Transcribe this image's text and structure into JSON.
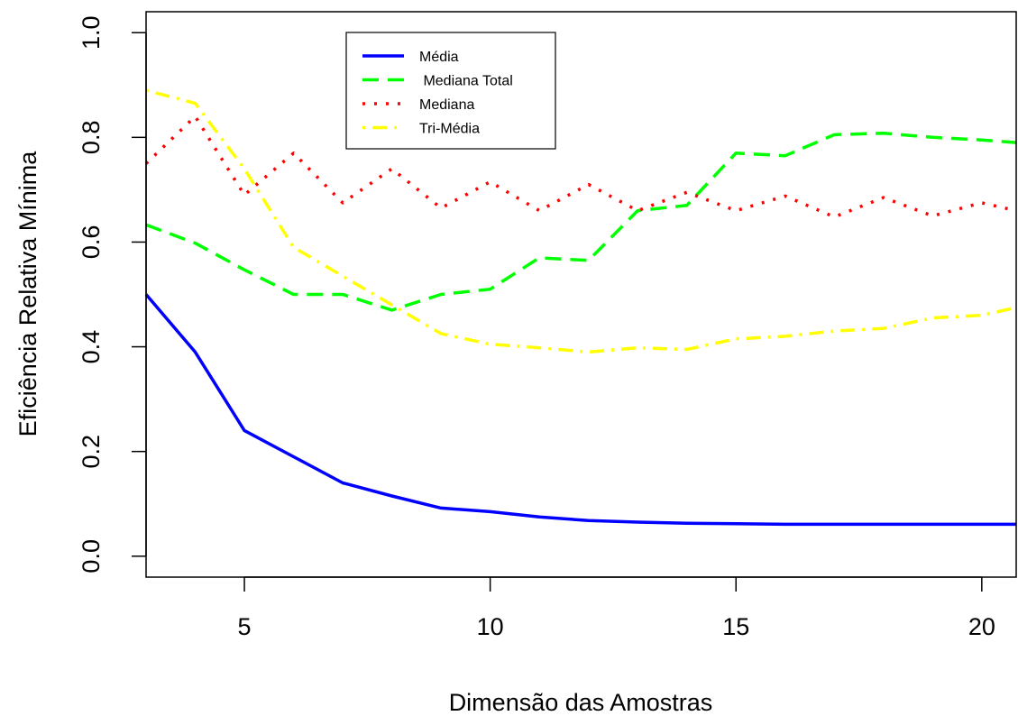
{
  "chart_data": {
    "type": "line",
    "xlabel": "Dimensão das Amostras",
    "ylabel": "Eficiência Relativa Mínima",
    "xlim": [
      3,
      20.7
    ],
    "ylim": [
      -0.04,
      1.04
    ],
    "xticks": [
      5,
      10,
      15,
      20
    ],
    "yticks": [
      0.0,
      0.2,
      0.4,
      0.6,
      0.8,
      1.0
    ],
    "ytick_labels": [
      "0.0",
      "0.2",
      "0.4",
      "0.6",
      "0.8",
      "1.0"
    ],
    "legend_position": "top-center",
    "x": [
      3,
      4,
      5,
      6,
      7,
      8,
      9,
      10,
      11,
      12,
      13,
      14,
      15,
      16,
      17,
      18,
      19,
      20,
      20.7
    ],
    "series": [
      {
        "name": "Média",
        "color": "#0000ff",
        "dash": "solid",
        "values": [
          0.5,
          0.39,
          0.24,
          0.19,
          0.14,
          0.115,
          0.092,
          0.085,
          0.075,
          0.068,
          0.065,
          0.063,
          0.062,
          0.061,
          0.061,
          0.061,
          0.061,
          0.061,
          0.061
        ]
      },
      {
        "name": " Mediana Total",
        "color": "#00ff00",
        "dash": "dashed",
        "values": [
          0.633,
          0.598,
          0.547,
          0.5,
          0.5,
          0.47,
          0.5,
          0.51,
          0.57,
          0.565,
          0.66,
          0.67,
          0.77,
          0.765,
          0.805,
          0.808,
          0.8,
          0.795,
          0.79
        ]
      },
      {
        "name": "Mediana",
        "color": "#ff0000",
        "dash": "dotted",
        "values": [
          0.75,
          0.84,
          0.69,
          0.77,
          0.675,
          0.74,
          0.665,
          0.715,
          0.66,
          0.71,
          0.66,
          0.695,
          0.66,
          0.688,
          0.648,
          0.685,
          0.65,
          0.675,
          0.66
        ]
      },
      {
        "name": "Tri-Média",
        "color": "#ffff00",
        "dash": "dotdash",
        "values": [
          0.89,
          0.865,
          0.74,
          0.59,
          0.535,
          0.48,
          0.425,
          0.405,
          0.398,
          0.39,
          0.398,
          0.395,
          0.415,
          0.42,
          0.43,
          0.435,
          0.455,
          0.46,
          0.475
        ]
      }
    ]
  }
}
